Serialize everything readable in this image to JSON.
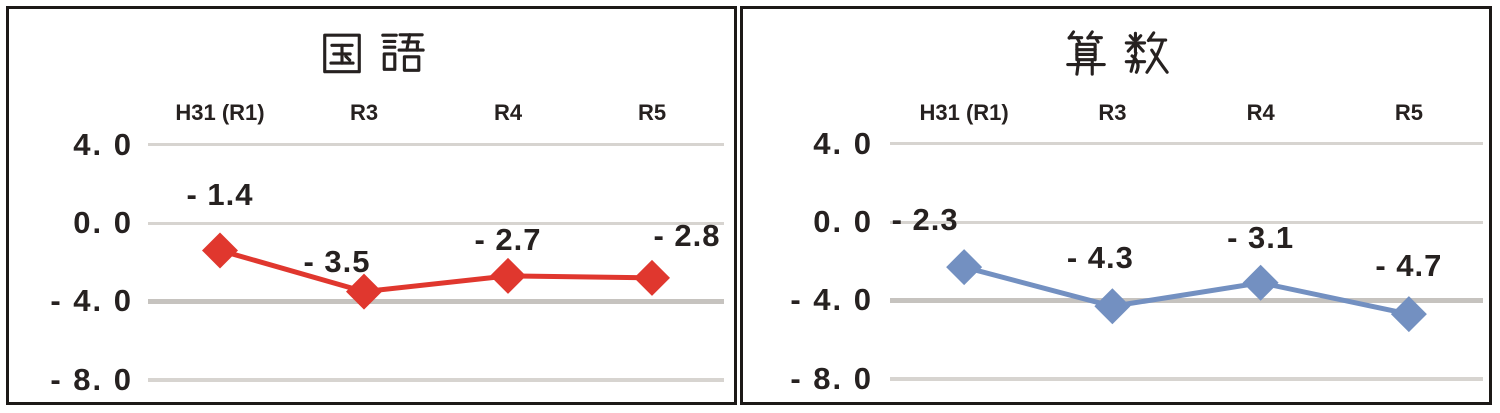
{
  "chart_data": [
    {
      "type": "line",
      "title": "国語",
      "categories": [
        "H31 (R1)",
        "R3",
        "R4",
        "R5"
      ],
      "values": [
        -1.4,
        -3.5,
        -2.7,
        -2.8
      ],
      "data_labels": [
        "- 1.4",
        "- 3.5",
        "- 2.7",
        "- 2.8"
      ],
      "series_color": "#e0372e",
      "marker": "diamond",
      "grid": true,
      "legend": "none",
      "x_axis_labels_position": "top",
      "ylim": [
        -8,
        4
      ],
      "y_axis": {
        "tick_labels": [
          "4. 0",
          "0. 0",
          "- 4. 0",
          "- 8. 0"
        ],
        "tick_values": [
          4,
          0,
          -4,
          -8
        ]
      }
    },
    {
      "type": "line",
      "title": "算数",
      "categories": [
        "H31 (R1)",
        "R3",
        "R4",
        "R5"
      ],
      "values": [
        -2.3,
        -4.3,
        -3.1,
        -4.7
      ],
      "data_labels": [
        "- 2.3",
        "- 4.3",
        "- 3.1",
        "- 4.7"
      ],
      "series_color": "#7390c1",
      "marker": "diamond",
      "grid": true,
      "legend": "none",
      "x_axis_labels_position": "top",
      "ylim": [
        -8,
        4
      ],
      "y_axis": {
        "tick_labels": [
          "4. 0",
          "0. 0",
          "- 4. 0",
          "- 8. 0"
        ],
        "tick_values": [
          4,
          0,
          -4,
          -8
        ]
      }
    }
  ],
  "colors": {
    "gridline": "#d7d4d0",
    "gridline_emphasis": "#c6c3bf",
    "text": "#262120",
    "panel_border": "#1c1917",
    "background": "#ffffff"
  }
}
